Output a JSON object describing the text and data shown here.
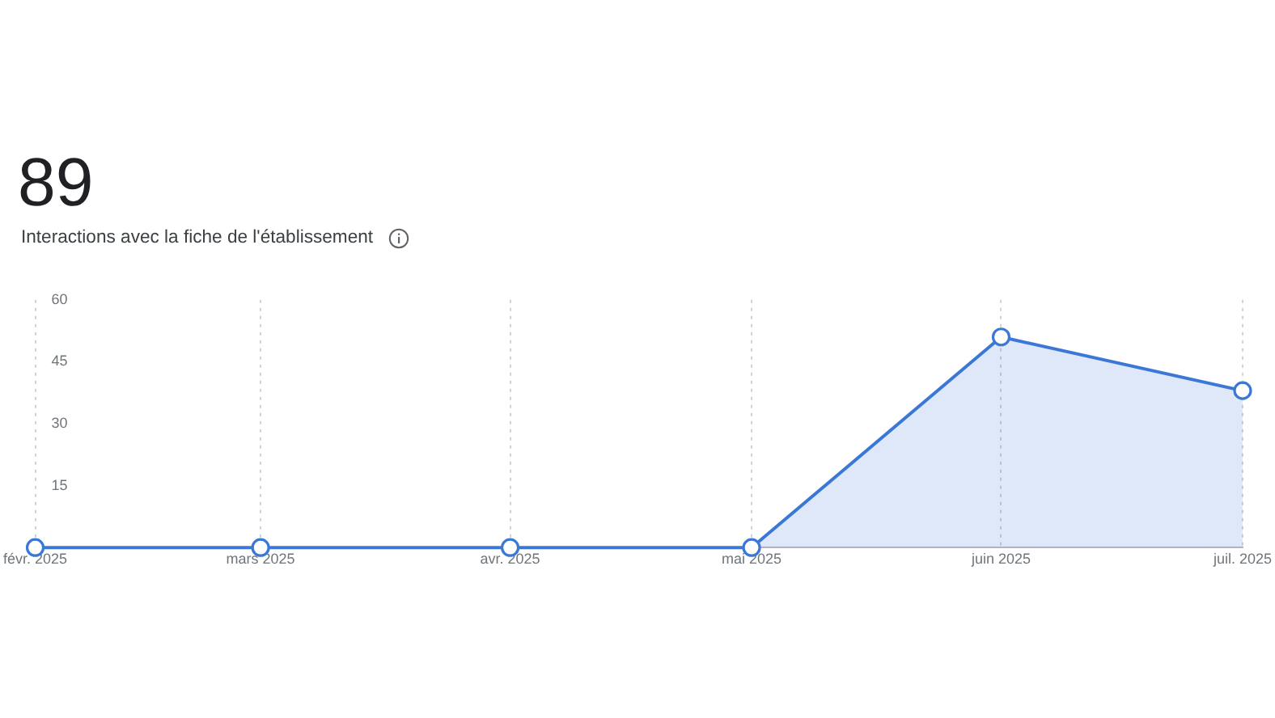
{
  "chart_data": {
    "type": "area",
    "title": "89",
    "subtitle": "Interactions avec la fiche de l'établissement",
    "x": [
      "2025-02",
      "2025-03",
      "2025-04",
      "2025-05",
      "2025-06",
      "2025-07"
    ],
    "values": [
      0,
      0,
      0,
      0,
      51,
      38
    ],
    "color": "#3b78d6",
    "xlim": [
      "2025-02",
      "2025-07"
    ],
    "xticks": [
      {
        "value": "2025-02",
        "label": "févr. 2025"
      },
      {
        "value": "2025-03",
        "label": "mars 2025"
      },
      {
        "value": "2025-04",
        "label": "avr. 2025"
      },
      {
        "value": "2025-05",
        "label": "mai 2025"
      },
      {
        "value": "2025-06",
        "label": "juin 2025"
      },
      {
        "value": "2025-07",
        "label": "juil. 2025"
      }
    ],
    "ylim": [
      0,
      60
    ],
    "yticks": [
      15,
      30,
      45,
      60
    ],
    "grid": "x",
    "marker": "circle",
    "line_style": "solid"
  }
}
